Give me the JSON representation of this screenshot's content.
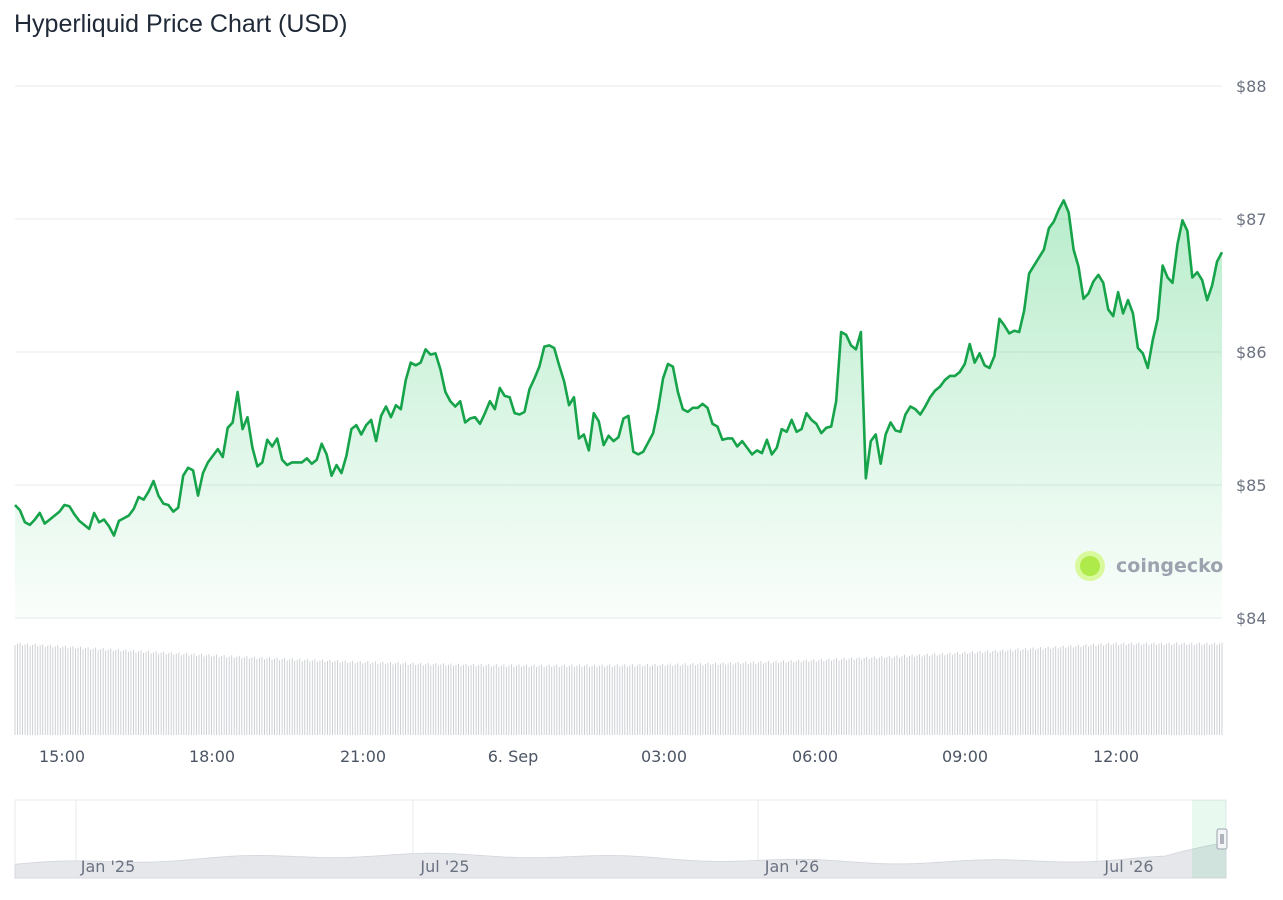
{
  "page": {
    "title": "Hyperliquid Price Chart (USD)"
  },
  "watermark": {
    "text": "coingecko"
  },
  "colors": {
    "line": "#16a34a",
    "fill_top": "#22c55e",
    "grid": "#e6e9ee",
    "volume": "#c8ccd1"
  },
  "chart_data": {
    "type": "line",
    "title": "Hyperliquid Price Chart (USD)",
    "xlabel": "",
    "ylabel": "",
    "ylim": [
      84,
      88
    ],
    "yticks": [
      84,
      85,
      86,
      87,
      88
    ],
    "ytick_labels": [
      "$84",
      "$85",
      "$86",
      "$87",
      "$88"
    ],
    "xticks": [
      "15:00",
      "18:00",
      "21:00",
      "6. Sep",
      "03:00",
      "06:00",
      "09:00",
      "12:00"
    ],
    "grid": true,
    "legend": "none",
    "series": [
      {
        "values": [
          84.85,
          84.81,
          84.72,
          84.7,
          84.74,
          84.79,
          84.71,
          84.74,
          84.77,
          84.8,
          84.85,
          84.84,
          84.78,
          84.73,
          84.7,
          84.67,
          84.79,
          84.72,
          84.74,
          84.69,
          84.62,
          84.73,
          84.75,
          84.77,
          84.82,
          84.91,
          84.89,
          84.95,
          85.03,
          84.92,
          84.86,
          84.85,
          84.8,
          84.83,
          85.07,
          85.13,
          85.11,
          84.92,
          85.09,
          85.17,
          85.22,
          85.27,
          85.21,
          85.43,
          85.47,
          85.7,
          85.42,
          85.51,
          85.28,
          85.14,
          85.17,
          85.34,
          85.29,
          85.35,
          85.19,
          85.15,
          85.17,
          85.17,
          85.17,
          85.2,
          85.16,
          85.19,
          85.31,
          85.23,
          85.07,
          85.15,
          85.09,
          85.22,
          85.42,
          85.45,
          85.38,
          85.45,
          85.49,
          85.33,
          85.52,
          85.59,
          85.51,
          85.6,
          85.57,
          85.79,
          85.92,
          85.9,
          85.92,
          86.02,
          85.98,
          85.99,
          85.87,
          85.7,
          85.63,
          85.59,
          85.63,
          85.47,
          85.5,
          85.51,
          85.46,
          85.54,
          85.63,
          85.57,
          85.73,
          85.67,
          85.66,
          85.54,
          85.53,
          85.55,
          85.72,
          85.8,
          85.89,
          86.04,
          86.05,
          86.03,
          85.9,
          85.78,
          85.6,
          85.66,
          85.35,
          85.38,
          85.26,
          85.54,
          85.48,
          85.3,
          85.37,
          85.33,
          85.36,
          85.5,
          85.52,
          85.25,
          85.23,
          85.25,
          85.32,
          85.39,
          85.57,
          85.8,
          85.91,
          85.89,
          85.7,
          85.57,
          85.55,
          85.58,
          85.58,
          85.61,
          85.58,
          85.46,
          85.44,
          85.34,
          85.35,
          85.35,
          85.29,
          85.33,
          85.28,
          85.23,
          85.26,
          85.24,
          85.34,
          85.23,
          85.28,
          85.42,
          85.4,
          85.49,
          85.4,
          85.42,
          85.54,
          85.49,
          85.46,
          85.39,
          85.43,
          85.44,
          85.63,
          86.15,
          86.13,
          86.05,
          86.02,
          86.15,
          85.05,
          85.33,
          85.38,
          85.16,
          85.38,
          85.47,
          85.41,
          85.4,
          85.53,
          85.59,
          85.57,
          85.53,
          85.59,
          85.66,
          85.71,
          85.74,
          85.79,
          85.82,
          85.82,
          85.85,
          85.91,
          86.06,
          85.92,
          85.99,
          85.9,
          85.88,
          85.97,
          86.25,
          86.2,
          86.14,
          86.16,
          86.15,
          86.31,
          86.59,
          86.65,
          86.71,
          86.77,
          86.93,
          86.98,
          87.07,
          87.14,
          87.05,
          86.77,
          86.64,
          86.4,
          86.44,
          86.53,
          86.58,
          86.52,
          86.32,
          86.27,
          86.45,
          86.29,
          86.39,
          86.29,
          86.03,
          85.99,
          85.88,
          86.09,
          86.25,
          86.65,
          86.56,
          86.52,
          86.81,
          86.99,
          86.91,
          86.56,
          86.6,
          86.54,
          86.39,
          86.5,
          86.68,
          86.75
        ]
      }
    ]
  },
  "navigator": {
    "labels": [
      "Jan '25",
      "Jul '25",
      "Jan '26",
      "Jul '26"
    ]
  }
}
